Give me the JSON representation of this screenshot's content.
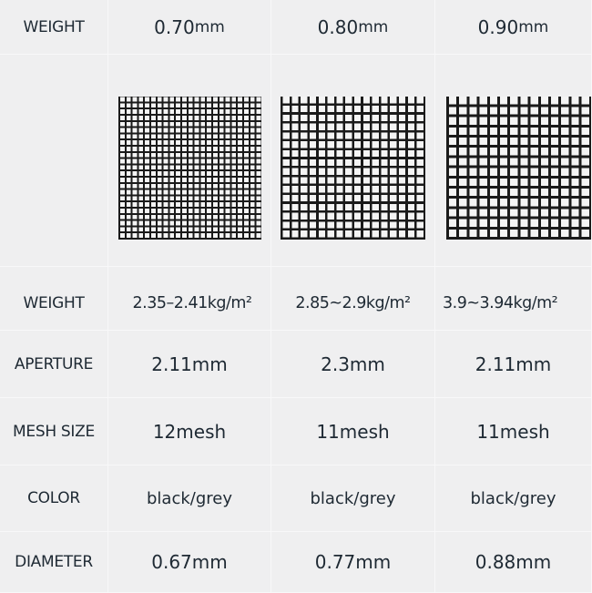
{
  "header": {
    "label": "WEIGHT",
    "columns": [
      {
        "num": "0.70",
        "unit": "mm"
      },
      {
        "num": "0.80",
        "unit": "mm"
      },
      {
        "num": "0.90",
        "unit": "mm"
      }
    ]
  },
  "images": {
    "icons": [
      "mesh-swatch-fine",
      "mesh-swatch-medium",
      "mesh-swatch-coarse"
    ],
    "mesh_color": "#1a1a1a"
  },
  "rows": [
    {
      "label": "WEIGHT",
      "values": [
        "2.35–2.41kg/m²",
        "2.85~2.9kg/m²",
        "3.9~3.94kg/m²"
      ]
    },
    {
      "label": "APERTURE",
      "values": [
        "2.11mm",
        "2.3mm",
        "2.11mm"
      ]
    },
    {
      "label": "MESH SIZE",
      "values": [
        "12mesh",
        "11mesh",
        "11mesh"
      ]
    },
    {
      "label": "COLOR",
      "values": [
        "black/grey",
        "black/grey",
        "black/grey"
      ]
    },
    {
      "label": "DIAMETER",
      "values": [
        "0.67mm",
        "0.77mm",
        "0.88mm"
      ]
    }
  ],
  "colors": {
    "background": "#efeff0",
    "text": "#1e2933",
    "divider": "#f8f8f9"
  }
}
